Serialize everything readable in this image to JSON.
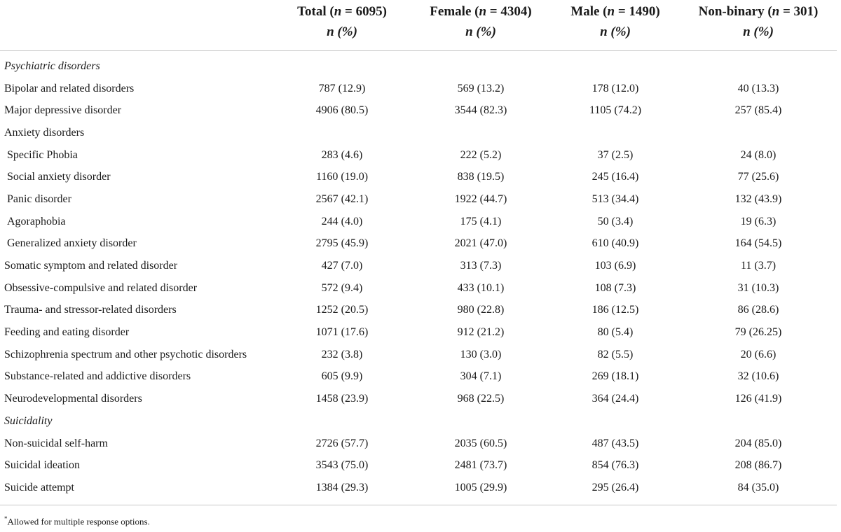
{
  "columns": [
    {
      "label": "",
      "n": ""
    },
    {
      "label": "Total (",
      "nvar": "n",
      "eq": " = 6095)",
      "sub": "n (%)"
    },
    {
      "label": "Female (",
      "nvar": "n",
      "eq": " = 4304)",
      "sub": "n (%)"
    },
    {
      "label": "Male (",
      "nvar": "n",
      "eq": " = 1490)",
      "sub": "n (%)"
    },
    {
      "label": "Non-binary (",
      "nvar": "n",
      "eq": " = 301)",
      "sub": "n (%)"
    }
  ],
  "rows": [
    {
      "label": "Psychiatric disorders",
      "section": true,
      "values": [
        "",
        "",
        "",
        ""
      ]
    },
    {
      "label": "Bipolar and related disorders",
      "values": [
        "787 (12.9)",
        "569 (13.2)",
        "178 (12.0)",
        "40 (13.3)"
      ]
    },
    {
      "label": "Major depressive disorder",
      "values": [
        "4906 (80.5)",
        "3544 (82.3)",
        "1105 (74.2)",
        "257 (85.4)"
      ]
    },
    {
      "label": "Anxiety disorders",
      "values": [
        "",
        "",
        "",
        ""
      ]
    },
    {
      "label": "Specific Phobia",
      "indent": true,
      "values": [
        "283 (4.6)",
        "222 (5.2)",
        "37 (2.5)",
        "24 (8.0)"
      ]
    },
    {
      "label": "Social anxiety disorder",
      "indent": true,
      "values": [
        "1160 (19.0)",
        "838 (19.5)",
        "245 (16.4)",
        "77 (25.6)"
      ]
    },
    {
      "label": "Panic disorder",
      "indent": true,
      "values": [
        "2567 (42.1)",
        "1922 (44.7)",
        "513 (34.4)",
        "132 (43.9)"
      ]
    },
    {
      "label": "Agoraphobia",
      "indent": true,
      "values": [
        "244 (4.0)",
        "175 (4.1)",
        "50 (3.4)",
        "19 (6.3)"
      ]
    },
    {
      "label": "Generalized anxiety disorder",
      "indent": true,
      "values": [
        "2795 (45.9)",
        "2021 (47.0)",
        "610 (40.9)",
        "164 (54.5)"
      ]
    },
    {
      "label": "Somatic symptom and related disorder",
      "values": [
        "427 (7.0)",
        "313 (7.3)",
        "103 (6.9)",
        "11 (3.7)"
      ]
    },
    {
      "label": "Obsessive-compulsive and related disorder",
      "values": [
        "572 (9.4)",
        "433 (10.1)",
        "108 (7.3)",
        "31 (10.3)"
      ]
    },
    {
      "label": "Trauma- and stressor-related disorders",
      "values": [
        "1252 (20.5)",
        "980 (22.8)",
        "186 (12.5)",
        "86 (28.6)"
      ]
    },
    {
      "label": "Feeding and eating disorder",
      "values": [
        "1071 (17.6)",
        "912 (21.2)",
        "80 (5.4)",
        "79 (26.25)"
      ]
    },
    {
      "label": "Schizophrenia spectrum and other psychotic disorders",
      "values": [
        "232 (3.8)",
        "130 (3.0)",
        "82 (5.5)",
        "20 (6.6)"
      ]
    },
    {
      "label": "Substance-related and addictive disorders",
      "values": [
        "605 (9.9)",
        "304 (7.1)",
        "269 (18.1)",
        "32 (10.6)"
      ]
    },
    {
      "label": "Neurodevelopmental disorders",
      "values": [
        "1458 (23.9)",
        "968 (22.5)",
        "364 (24.4)",
        "126 (41.9)"
      ]
    },
    {
      "label": "Suicidality",
      "section": true,
      "values": [
        "",
        "",
        "",
        ""
      ]
    },
    {
      "label": "Non-suicidal self-harm",
      "values": [
        "2726 (57.7)",
        "2035 (60.5)",
        "487 (43.5)",
        "204 (85.0)"
      ]
    },
    {
      "label": "Suicidal ideation",
      "values": [
        "3543 (75.0)",
        "2481 (73.7)",
        "854 (76.3)",
        "208 (86.7)"
      ]
    },
    {
      "label": "Suicide attempt",
      "values": [
        "1384 (29.3)",
        "1005 (29.9)",
        "295 (26.4)",
        "84 (35.0)"
      ]
    }
  ],
  "footnote": {
    "mark": "*",
    "text": "Allowed for multiple response options."
  }
}
